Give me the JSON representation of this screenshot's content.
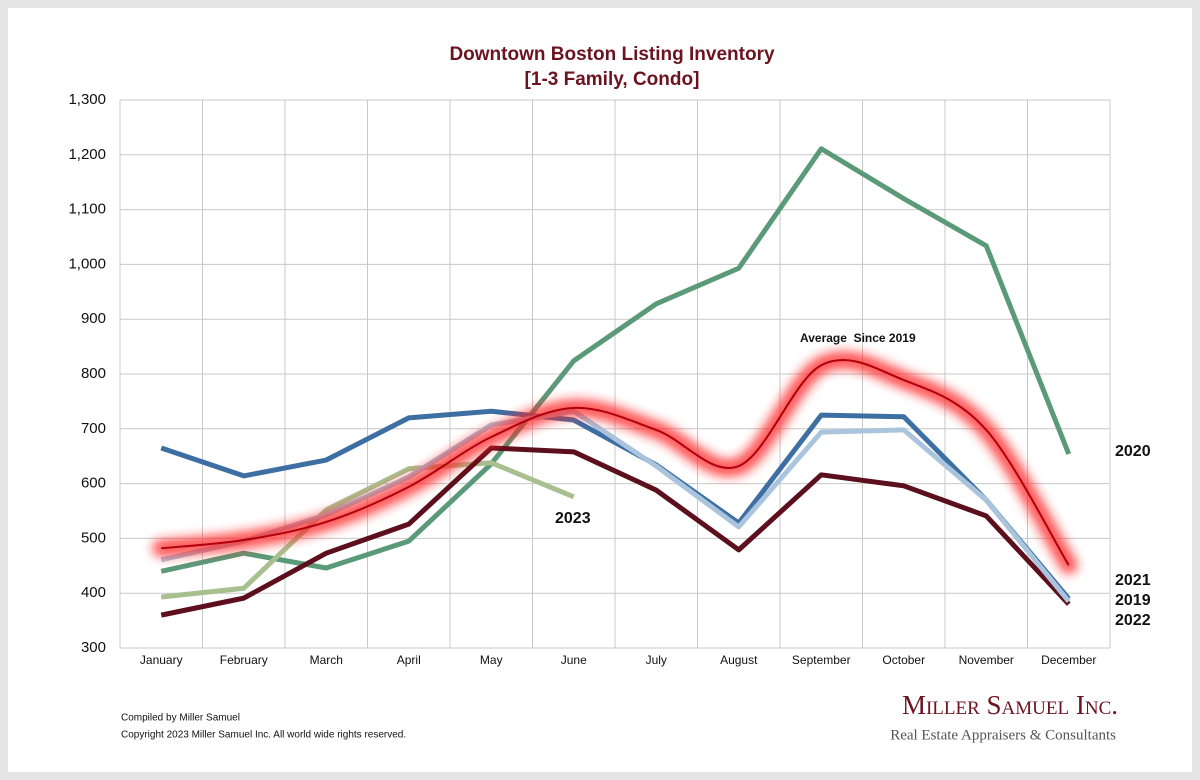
{
  "chart_data": {
    "type": "line",
    "title": "Downtown Boston Listing Inventory",
    "subtitle": "[1-3 Family, Condo]",
    "categories": [
      "January",
      "February",
      "March",
      "April",
      "May",
      "June",
      "July",
      "August",
      "September",
      "October",
      "November",
      "December"
    ],
    "series": [
      {
        "name": "2020",
        "color": "#5b9a78",
        "values": [
          440,
          473,
          446,
          495,
          636,
          824,
          928,
          993,
          1211,
          1120,
          1034,
          654
        ]
      },
      {
        "name": "2023",
        "color": "#a8c08f",
        "values": [
          393,
          409,
          552,
          627,
          638,
          576,
          null,
          null,
          null,
          null,
          null,
          null
        ]
      },
      {
        "name": "2022",
        "color": "#5c0f1c",
        "values": [
          360,
          391,
          473,
          526,
          665,
          658,
          588,
          479,
          616,
          596,
          541,
          380
        ]
      },
      {
        "name": "2021",
        "color": "#3d6fa3",
        "values": [
          665,
          614,
          643,
          720,
          732,
          716,
          634,
          528,
          725,
          722,
          570,
          390
        ]
      },
      {
        "name": "2019",
        "color": "#a9c4dc",
        "values": [
          461,
          495,
          543,
          612,
          707,
          732,
          632,
          521,
          694,
          698,
          570,
          385
        ]
      },
      {
        "name": "Average  Since 2019",
        "color": "#b0000d",
        "smooth": true,
        "glow": "#ff2020",
        "values": [
          482,
          497,
          530,
          594,
          685,
          738,
          698,
          632,
          816,
          789,
          698,
          451
        ]
      }
    ],
    "ylim": [
      300,
      1300
    ],
    "yticks": [
      300,
      400,
      500,
      600,
      700,
      800,
      900,
      {
        "value": 1000,
        "label": "1,000"
      },
      {
        "value": 1100,
        "label": "1,100"
      },
      {
        "value": 1200,
        "label": "1,200"
      },
      {
        "value": 1300,
        "label": "1,300"
      }
    ],
    "grid": true
  },
  "footer": {
    "compiled": "Compiled by Miller Samuel",
    "copyright": "Copyright 2023 Miller Samuel Inc.  All world wide rights reserved.",
    "logo": "Miller Samuel Inc.",
    "tagline": "Real Estate Appraisers & Consultants"
  }
}
